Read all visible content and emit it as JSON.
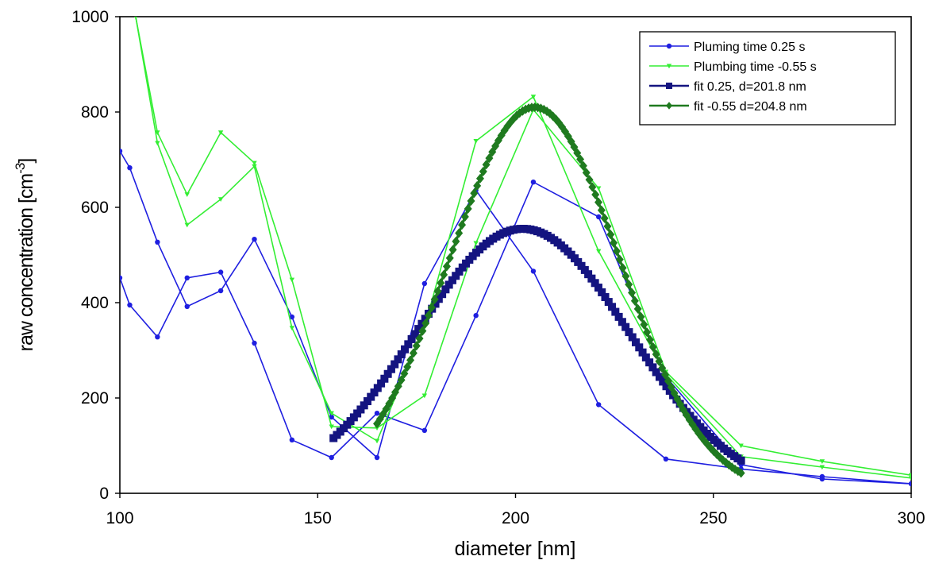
{
  "chart_data": {
    "type": "line",
    "title": "",
    "xlabel": "diameter [nm]",
    "ylabel": "raw concentration [cm",
    "ylabel_sup": "-3",
    "ylabel_end": "]",
    "xlim": [
      100,
      300
    ],
    "ylim": [
      0,
      1000
    ],
    "xticks": [
      100,
      150,
      200,
      250,
      300
    ],
    "yticks": [
      0,
      200,
      400,
      600,
      800,
      1000
    ],
    "grid": false,
    "legend_position": "top-right",
    "series": [
      {
        "name": "Pluming time 0.25 s",
        "color": "#1f1fe0",
        "marker": "circle",
        "style": "line",
        "x": [
          100,
          102.5,
          109.5,
          117,
          125.5,
          134,
          143.5,
          153.5,
          165,
          177,
          190,
          204.5,
          221,
          238,
          257,
          277.5,
          300
        ],
        "y": [
          718,
          683,
          527,
          392,
          425,
          533,
          370,
          160,
          75,
          440,
          636,
          466,
          186,
          72,
          51,
          35,
          20
        ]
      },
      {
        "name": "",
        "color": "#1f1fe0",
        "marker": "circle",
        "style": "line",
        "x": [
          100,
          102.5,
          109.5,
          117,
          125.5,
          134,
          143.5,
          153.5,
          165,
          177,
          190,
          204.5,
          221,
          238,
          257,
          277.5,
          300
        ],
        "y": [
          452,
          395,
          328,
          452,
          464,
          315,
          112,
          75,
          168,
          132,
          373,
          653,
          580,
          245,
          60,
          30,
          20
        ]
      },
      {
        "name": "Plumbing time -0.55 s",
        "color": "#33ee33",
        "marker": "triangle-down",
        "style": "line",
        "x": [
          104,
          109.5,
          117,
          125.5,
          134,
          143.5,
          153.5,
          165,
          177,
          190,
          204.5,
          221,
          238,
          257,
          277.5,
          300
        ],
        "y": [
          1000,
          757,
          627,
          757,
          693,
          448,
          140,
          137,
          205,
          525,
          805,
          640,
          255,
          100,
          67,
          38
        ]
      },
      {
        "name": "",
        "color": "#33ee33",
        "marker": "triangle-down",
        "style": "line",
        "x": [
          104,
          109.5,
          117,
          125.5,
          134,
          143.5,
          153.5,
          165,
          177,
          190,
          204.5,
          221,
          238,
          257,
          277.5,
          300
        ],
        "y": [
          1000,
          735,
          563,
          617,
          686,
          347,
          168,
          110,
          348,
          739,
          832,
          508,
          250,
          77,
          55,
          32
        ]
      },
      {
        "name": "fit 0.25, d=201.8 nm",
        "color": "#141480",
        "marker": "square",
        "style": "fit",
        "amplitude": 555,
        "center": 201.8,
        "sigma": 27,
        "x_range": [
          154,
          257
        ]
      },
      {
        "name": "fit -0.55 d=204.8 nm",
        "color": "#1f7a1f",
        "marker": "diamond",
        "style": "fit",
        "amplitude": 810,
        "center": 204.8,
        "sigma": 21.5,
        "x_range": [
          165,
          257
        ]
      }
    ]
  }
}
